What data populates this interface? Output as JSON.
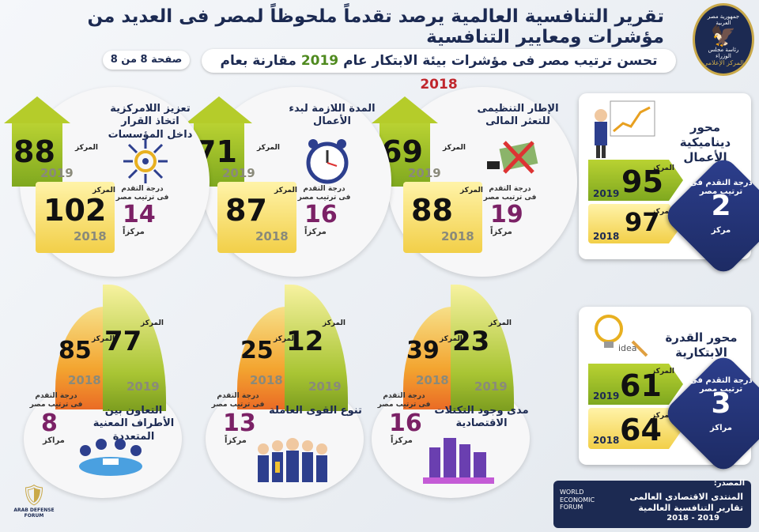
{
  "header": {
    "title": "تقرير التنافسية العالمية يرصد تقدماً ملحوظاً لمصر فى العديد من مؤشرات ومعايير التنافسية",
    "subtitle_part1": "تحسن ترتيب مصر فى مؤشرات بيئة الابتكار عام",
    "subtitle_year_2019": "2019",
    "subtitle_part2": "مقارنة بعام",
    "subtitle_year_2018": "2018",
    "page": "صفحة 8 من 8",
    "logo_top": "جمهورية مصر العربية",
    "logo_mid": "رئاسة مجلس الوزراء",
    "logo_bottom": "المركز الإعلامى"
  },
  "labels": {
    "rank": "المركز",
    "progress": "درجة التقدم فى ترتيب مصر",
    "rank_unit_single": "مركزاً",
    "rank_unit_plural": "مراكز",
    "y2019": "2019",
    "y2018": "2018"
  },
  "top_metrics": [
    {
      "title": "الإطار التنظيمى للتعثر المالى",
      "rank_2019": "69",
      "rank_2018": "88",
      "progress": "19",
      "unit": "مركزاً"
    },
    {
      "title": "المدة اللازمة لبدء الأعمال",
      "rank_2019": "71",
      "rank_2018": "87",
      "progress": "16",
      "unit": "مركزاً"
    },
    {
      "title": "تعزيز اللامركزية اتخاذ القرار داخل المؤسسات",
      "rank_2019": "88",
      "rank_2018": "102",
      "progress": "14",
      "unit": "مركزاً"
    }
  ],
  "bottom_metrics": [
    {
      "title": "مدى وجود التكتلات الاقتصادية",
      "rank_2019": "23",
      "rank_2018": "39",
      "progress": "16",
      "unit": "مركزاً"
    },
    {
      "title": "تنوع القوى العاملة",
      "rank_2019": "12",
      "rank_2018": "25",
      "progress": "13",
      "unit": "مركزاً"
    },
    {
      "title": "التعاون بين الأطراف المعنية المتعددة",
      "rank_2019": "77",
      "rank_2018": "85",
      "progress": "8",
      "unit": "مراكز"
    }
  ],
  "axes": [
    {
      "title": "محور ديناميكية الأعمال",
      "rank_2019": "95",
      "rank_2018": "97",
      "progress": "2",
      "unit": "مركز"
    },
    {
      "title": "محور القدرة الابتكارية",
      "rank_2019": "61",
      "rank_2018": "64",
      "progress": "3",
      "unit": "مراكز"
    }
  ],
  "source": {
    "label": "المصدر:",
    "org": "المنتدى الاقتصادى العالمى",
    "report": "تقارير التنافسية العالمية",
    "years": "2019 - 2018",
    "wef_line1": "WORLD",
    "wef_line2": "ECONOMIC",
    "wef_line3": "FORUM"
  },
  "watermark": {
    "line1": "ARAB DEFENSE FORUM"
  },
  "colors": {
    "navy": "#1c2a52",
    "green": "#7fa81f",
    "yellow": "#f2cf48",
    "purple": "#7b2166",
    "orange": "#ea6b25"
  }
}
